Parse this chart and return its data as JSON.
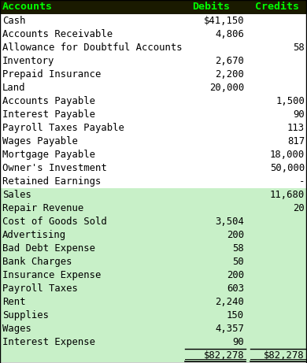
{
  "header": [
    "Accounts",
    "Debits",
    "Credits"
  ],
  "rows": [
    {
      "account": "Cash",
      "debit": "$41,150",
      "credit": "",
      "shaded": false
    },
    {
      "account": "Accounts Receivable",
      "debit": "4,806",
      "credit": "",
      "shaded": false
    },
    {
      "account": "Allowance for Doubtful Accounts",
      "debit": "",
      "credit": "58",
      "shaded": false
    },
    {
      "account": "Inventory",
      "debit": "2,670",
      "credit": "",
      "shaded": false
    },
    {
      "account": "Prepaid Insurance",
      "debit": "2,200",
      "credit": "",
      "shaded": false
    },
    {
      "account": "Land",
      "debit": "20,000",
      "credit": "",
      "shaded": false
    },
    {
      "account": "Accounts Payable",
      "debit": "",
      "credit": "1,500",
      "shaded": false
    },
    {
      "account": "Interest Payable",
      "debit": "",
      "credit": "90",
      "shaded": false
    },
    {
      "account": "Payroll Taxes Payable",
      "debit": "",
      "credit": "113",
      "shaded": false
    },
    {
      "account": "Wages Payable",
      "debit": "",
      "credit": "817",
      "shaded": false
    },
    {
      "account": "Mortgage Payable",
      "debit": "",
      "credit": "18,000",
      "shaded": false
    },
    {
      "account": "Owner's Investment",
      "debit": "",
      "credit": "50,000",
      "shaded": false
    },
    {
      "account": "Retained Earnings",
      "debit": "",
      "credit": "-",
      "shaded": false
    },
    {
      "account": "Sales",
      "debit": "",
      "credit": "11,680",
      "shaded": true
    },
    {
      "account": "Repair Revenue",
      "debit": "",
      "credit": "20",
      "shaded": true
    },
    {
      "account": "Cost of Goods Sold",
      "debit": "3,504",
      "credit": "",
      "shaded": true
    },
    {
      "account": "Advertising",
      "debit": "200",
      "credit": "",
      "shaded": true
    },
    {
      "account": "Bad Debt Expense",
      "debit": "58",
      "credit": "",
      "shaded": true
    },
    {
      "account": "Bank Charges",
      "debit": "50",
      "credit": "",
      "shaded": true
    },
    {
      "account": "Insurance Expense",
      "debit": "200",
      "credit": "",
      "shaded": true
    },
    {
      "account": "Payroll Taxes",
      "debit": "603",
      "credit": "",
      "shaded": true
    },
    {
      "account": "Rent",
      "debit": "2,240",
      "credit": "",
      "shaded": true
    },
    {
      "account": "Supplies",
      "debit": "150",
      "credit": "",
      "shaded": true
    },
    {
      "account": "Wages",
      "debit": "4,357",
      "credit": "",
      "shaded": true
    },
    {
      "account": "Interest Expense",
      "debit": "90",
      "credit": "",
      "shaded": true
    }
  ],
  "totals": {
    "debit": "$82,278",
    "credit": "$82,278"
  },
  "header_bg": "#1a1a00",
  "header_fg": "#00ff00",
  "shaded_bg": "#c8f0c8",
  "unshaded_bg": "#ffffff",
  "text_color": "#000000",
  "border_color": "#000000",
  "font_family": "monospace",
  "header_fontsize": 9.5,
  "row_fontsize": 8.8,
  "figwidth": 3.9,
  "figheight": 4.61,
  "dpi": 100
}
